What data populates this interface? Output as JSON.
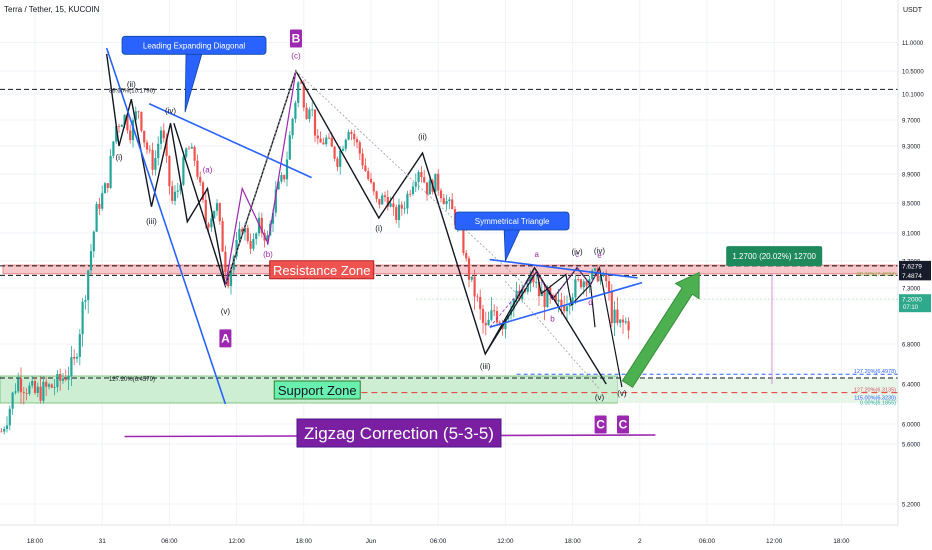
{
  "header": {
    "title": "Terra / Tether, 15, KUCOIN",
    "currency": "USDT"
  },
  "chart_data": {
    "type": "candlestick",
    "ylim": [
      5.1,
      11.2
    ],
    "yticks": [
      11.0,
      10.5,
      10.1,
      9.7,
      9.3,
      8.9,
      8.5,
      8.1,
      7.7,
      7.3,
      6.8,
      6.4,
      6.0,
      5.6,
      5.2
    ],
    "ytick_labels": [
      "11.0000",
      "10.5000",
      "10.1000",
      "9.7000",
      "9.3000",
      "8.9000",
      "8.5000",
      "8.1000",
      "7.7000",
      "7.3000",
      "6.8000",
      "6.4000",
      "6.0000",
      "5.6000",
      "5.2000"
    ],
    "xticks": [
      {
        "x": 0.0,
        "label": "18:00"
      },
      {
        "x": 6.0,
        "label": "31"
      },
      {
        "x": 12.0,
        "label": "06:00"
      },
      {
        "x": 18.0,
        "label": "12:00"
      },
      {
        "x": 24.0,
        "label": "18:00"
      },
      {
        "x": 30.0,
        "label": "Jun"
      },
      {
        "x": 36.0,
        "label": "06:00"
      },
      {
        "x": 42.0,
        "label": "12:00"
      },
      {
        "x": 48.0,
        "label": "18:00"
      },
      {
        "x": 54.0,
        "label": "2"
      },
      {
        "x": 60.0,
        "label": "06:00"
      },
      {
        "x": 66.0,
        "label": "12:00"
      },
      {
        "x": 72.0,
        "label": "18:00"
      }
    ],
    "price_path": [
      [
        -3.0,
        5.85
      ],
      [
        -1.6,
        6.45
      ],
      [
        0.0,
        6.3
      ],
      [
        2.0,
        6.4
      ],
      [
        3.5,
        6.6
      ],
      [
        4.5,
        7.3
      ],
      [
        5.5,
        8.4
      ],
      [
        6.5,
        8.8
      ],
      [
        7.2,
        9.6
      ],
      [
        8.0,
        9.75
      ],
      [
        8.5,
        9.5
      ],
      [
        9.2,
        9.9
      ],
      [
        9.8,
        9.35
      ],
      [
        10.6,
        9.0
      ],
      [
        11.3,
        9.6
      ],
      [
        12.2,
        8.5
      ],
      [
        12.8,
        8.7
      ],
      [
        13.6,
        9.3
      ],
      [
        14.3,
        9.1
      ],
      [
        15.3,
        8.2
      ],
      [
        16.2,
        8.5
      ],
      [
        17.2,
        7.4
      ],
      [
        17.8,
        7.8
      ],
      [
        18.5,
        8.2
      ],
      [
        19.4,
        7.9
      ],
      [
        20.0,
        8.2
      ],
      [
        20.8,
        8.0
      ],
      [
        21.4,
        8.6
      ],
      [
        22.3,
        8.9
      ],
      [
        22.8,
        9.5
      ],
      [
        23.6,
        10.4
      ],
      [
        24.2,
        9.8
      ],
      [
        24.6,
        10.0
      ],
      [
        25.2,
        9.3
      ],
      [
        26.0,
        9.4
      ],
      [
        27.0,
        9.1
      ],
      [
        28.0,
        9.6
      ],
      [
        28.8,
        9.3
      ],
      [
        29.6,
        8.9
      ],
      [
        30.5,
        8.5
      ],
      [
        31.4,
        8.6
      ],
      [
        32.1,
        8.3
      ],
      [
        33.0,
        8.5
      ],
      [
        33.7,
        8.8
      ],
      [
        34.3,
        9.0
      ],
      [
        35.0,
        8.7
      ],
      [
        35.8,
        8.8
      ],
      [
        36.4,
        8.6
      ],
      [
        37.2,
        8.4
      ],
      [
        38.0,
        8.1
      ],
      [
        38.7,
        7.5
      ],
      [
        39.4,
        7.2
      ],
      [
        40.2,
        6.9
      ],
      [
        41.0,
        7.1
      ],
      [
        41.8,
        7.0
      ],
      [
        42.5,
        7.2
      ],
      [
        43.5,
        7.2
      ],
      [
        44.4,
        7.45
      ],
      [
        45.0,
        7.25
      ],
      [
        45.8,
        7.2
      ],
      [
        46.6,
        7.1
      ],
      [
        47.4,
        7.2
      ],
      [
        48.3,
        7.35
      ],
      [
        49.3,
        7.45
      ],
      [
        50.2,
        7.5
      ],
      [
        51.0,
        7.4
      ],
      [
        51.4,
        7.1
      ],
      [
        52.0,
        6.95
      ],
      [
        53.0,
        7.0
      ]
    ],
    "resistance_zone": {
      "top": 7.64,
      "bottom": 7.51,
      "label": "Resistance Zone"
    },
    "support_zone": {
      "top": 6.48,
      "bottom": 6.21,
      "label": "Support Zone"
    },
    "elliott_main": [
      {
        "x": 12.4,
        "y": 9.65
      },
      {
        "x": 17.0,
        "y": 7.33
      },
      {
        "x": 23.3,
        "y": 10.5
      },
      {
        "x": 30.7,
        "y": 8.3
      },
      {
        "x": 34.6,
        "y": 9.2
      },
      {
        "x": 40.2,
        "y": 6.7
      },
      {
        "x": 44.6,
        "y": 7.6
      },
      {
        "x": 51.0,
        "y": 6.4
      }
    ],
    "diagonal": [
      {
        "x": 6.4,
        "y": 10.8
      },
      {
        "x": 7.5,
        "y": 9.3
      },
      {
        "x": 8.6,
        "y": 10.02
      },
      {
        "x": 10.4,
        "y": 8.45
      },
      {
        "x": 12.1,
        "y": 9.65
      },
      {
        "x": 13.6,
        "y": 8.25
      },
      {
        "x": 15.4,
        "y": 8.7
      },
      {
        "x": 17.0,
        "y": 7.33
      }
    ],
    "b_wave": [
      {
        "x": 17.0,
        "y": 7.33
      },
      {
        "x": 18.5,
        "y": 8.7
      },
      {
        "x": 20.8,
        "y": 7.95
      },
      {
        "x": 23.3,
        "y": 10.5
      }
    ],
    "triangle": [
      {
        "x": 40.2,
        "y": 6.7
      },
      {
        "x": 44.8,
        "y": 7.55
      },
      {
        "x": 46.2,
        "y": 7.2
      },
      {
        "x": 48.4,
        "y": 7.6
      },
      {
        "x": 49.6,
        "y": 7.35
      },
      {
        "x": 50.4,
        "y": 7.6
      },
      {
        "x": 52.4,
        "y": 6.37
      }
    ],
    "ghost_path": [
      {
        "x": 44.8,
        "y": 7.55
      },
      {
        "x": 45.2,
        "y": 7.25
      },
      {
        "x": 47.4,
        "y": 7.5
      },
      {
        "x": 47.9,
        "y": 7.15
      },
      {
        "x": 49.6,
        "y": 7.35
      },
      {
        "x": 50.0,
        "y": 6.95
      }
    ],
    "price_levels": [
      {
        "value": 10.18,
        "label": "86.60%(10.1796)",
        "label_x": 6.6
      },
      {
        "value": 6.46,
        "label": "127.20%(6.4579)",
        "label_x": 6.6
      },
      {
        "value": 7.6279,
        "label": "7.6279",
        "tag_color": "#161c2a"
      },
      {
        "value": 7.4874,
        "label": "7.4874",
        "tag_color": "#161c2a"
      },
      {
        "value": 7.2,
        "label": "7.2000",
        "tag_color": "#2fa98c",
        "time": "07:10"
      }
    ],
    "right_fib_labels": [
      {
        "value": 7.46,
        "label": "98.30%(7.4634)",
        "color": "#8ca93f"
      },
      {
        "value": 6.4978,
        "label": "127.20%(6.4978)",
        "color": "#2962ff"
      },
      {
        "value": 6.3135,
        "label": "127.20%(6.3135)",
        "color": "#cf5667"
      },
      {
        "value": 6.323,
        "label": "115.00%(6.3230)",
        "color": "#2962ff"
      },
      {
        "value": 6.1855,
        "label": "0.00%(6.1855)",
        "color": "#26a69a"
      }
    ],
    "annotations": [
      {
        "text": "(ii)",
        "x": 8.6,
        "y": 10.22,
        "color": "#131722"
      },
      {
        "text": "(iv)",
        "x": 12.1,
        "y": 9.8,
        "color": "#131722"
      },
      {
        "text": "(i)",
        "x": 7.5,
        "y": 9.1,
        "color": "#131722"
      },
      {
        "text": "(iii)",
        "x": 10.4,
        "y": 8.22,
        "color": "#131722"
      },
      {
        "text": "(v)",
        "x": 17.0,
        "y": 7.07,
        "color": "#131722"
      },
      {
        "text": "(a)",
        "x": 15.4,
        "y": 8.92,
        "color": "#9c27b0"
      },
      {
        "text": "(b)",
        "x": 20.8,
        "y": 7.76,
        "color": "#9c27b0"
      },
      {
        "text": "(c)",
        "x": 23.3,
        "y": 10.72,
        "color": "#9c27b0"
      },
      {
        "text": "(i)",
        "x": 30.7,
        "y": 8.13,
        "color": "#131722"
      },
      {
        "text": "(ii)",
        "x": 34.6,
        "y": 9.4,
        "color": "#131722"
      },
      {
        "text": "(iii)",
        "x": 40.2,
        "y": 6.55,
        "color": "#131722"
      },
      {
        "text": "a",
        "x": 44.8,
        "y": 7.76,
        "color": "#9c27b0"
      },
      {
        "text": "b",
        "x": 46.2,
        "y": 7.0,
        "color": "#9c27b0"
      },
      {
        "text": "c",
        "x": 48.4,
        "y": 7.76,
        "color": "#9c27b0"
      },
      {
        "text": "d",
        "x": 49.6,
        "y": 7.15,
        "color": "#9c27b0"
      },
      {
        "text": "e",
        "x": 50.4,
        "y": 7.74,
        "color": "#9c27b0"
      },
      {
        "text": "(iv)",
        "x": 48.4,
        "y": 7.79,
        "color": "#131722"
      },
      {
        "text": "(iv)",
        "x": 50.4,
        "y": 7.81,
        "color": "#131722"
      },
      {
        "text": "(v)",
        "x": 50.4,
        "y": 6.24,
        "color": "#131722"
      },
      {
        "text": "(v)",
        "x": 52.4,
        "y": 6.28,
        "color": "#131722"
      }
    ],
    "wave_badges": [
      {
        "text": "A",
        "x": 17.0,
        "y": 6.85
      },
      {
        "text": "B",
        "x": 23.3,
        "y": 11.07
      },
      {
        "text": "C",
        "x": 50.5,
        "y": 5.99
      },
      {
        "text": "C",
        "x": 52.5,
        "y": 5.99
      }
    ],
    "callouts": [
      {
        "text": "Leading Expanding Diagonal",
        "x": 14.2,
        "y": 10.95,
        "pointer": {
          "x": 13.4,
          "y": 9.82
        }
      },
      {
        "text": "Symmetrical Triangle",
        "x": 42.6,
        "y": 8.26,
        "pointer": {
          "x": 42.0,
          "y": 7.7
        }
      }
    ],
    "target": {
      "text": "1.2700 (20.02%) 12700",
      "from": {
        "x": 52.9,
        "y": 6.4
      },
      "to": {
        "x": 59.3,
        "y": 7.53
      }
    },
    "title_banner": {
      "text": "Zigzag Correction (5-3-5)"
    }
  },
  "colors": {
    "up": "#26a69a",
    "down": "#ef5350",
    "black_line": "#131722",
    "blue_line": "#2962ff",
    "purple": "#9c27b0",
    "resistance_fill": "#f8c9cc",
    "support_fill": "#cdeed2",
    "target_green": "#4caf50",
    "label_green": "#1e8a5c"
  }
}
